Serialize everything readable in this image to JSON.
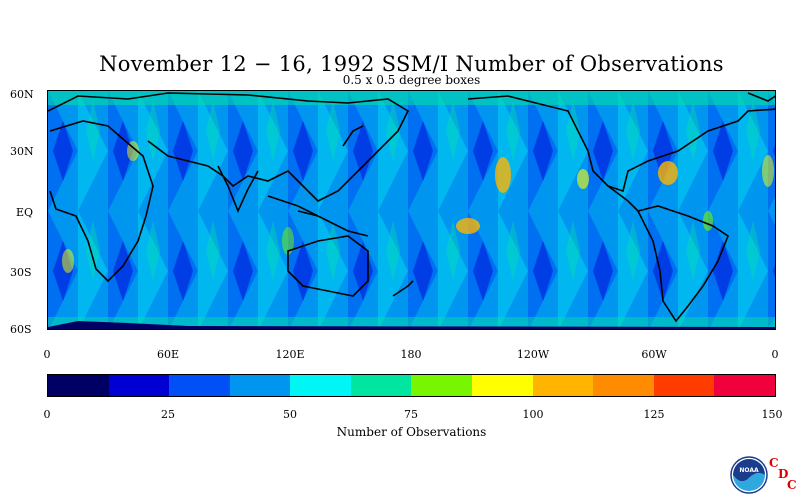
{
  "title": "November 12 − 16, 1992 SSM/I Number of Observations",
  "subtitle": "0.5 x 0.5 degree boxes",
  "lat_labels": [
    "60N",
    "30N",
    "EQ",
    "30S",
    "60S"
  ],
  "lon_labels": [
    "0",
    "60E",
    "120E",
    "180",
    "120W",
    "60W",
    "0"
  ],
  "colorbar": {
    "title": "Number of Observations",
    "tick_labels": [
      "0",
      "25",
      "50",
      "75",
      "100",
      "125",
      "150"
    ],
    "colors": [
      "#000064",
      "#0000d2",
      "#0050f5",
      "#0096f0",
      "#00f5f5",
      "#00e6a0",
      "#78f500",
      "#ffff00",
      "#ffb400",
      "#ff8c00",
      "#ff3c00",
      "#f0003c"
    ]
  },
  "logo": {
    "text": "NOAA",
    "letters": [
      "C",
      "D",
      "C"
    ]
  }
}
